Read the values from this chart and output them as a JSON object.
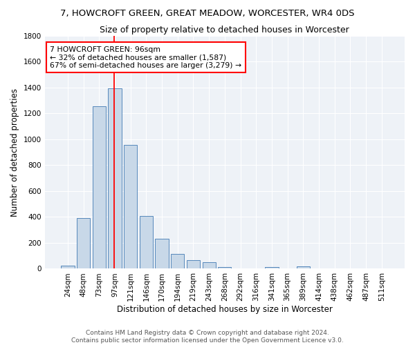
{
  "title": "7, HOWCROFT GREEN, GREAT MEADOW, WORCESTER, WR4 0DS",
  "subtitle": "Size of property relative to detached houses in Worcester",
  "xlabel": "Distribution of detached houses by size in Worcester",
  "ylabel": "Number of detached properties",
  "bar_labels": [
    "24sqm",
    "48sqm",
    "73sqm",
    "97sqm",
    "121sqm",
    "146sqm",
    "170sqm",
    "194sqm",
    "219sqm",
    "243sqm",
    "268sqm",
    "292sqm",
    "316sqm",
    "341sqm",
    "365sqm",
    "389sqm",
    "414sqm",
    "438sqm",
    "462sqm",
    "487sqm",
    "511sqm"
  ],
  "bar_values": [
    25,
    390,
    1255,
    1395,
    955,
    410,
    230,
    115,
    65,
    50,
    15,
    5,
    5,
    12,
    5,
    20,
    0,
    0,
    0,
    0,
    0
  ],
  "bar_color": "#c8d8e8",
  "bar_edge_color": "#5588bb",
  "property_line_label": "7 HOWCROFT GREEN: 96sqm",
  "annotation_line1": "← 32% of detached houses are smaller (1,587)",
  "annotation_line2": "67% of semi-detached houses are larger (3,279) →",
  "annotation_box_color": "white",
  "annotation_box_edge_color": "red",
  "vline_color": "red",
  "vline_x": 2.97,
  "ylim": [
    0,
    1800
  ],
  "yticks": [
    0,
    200,
    400,
    600,
    800,
    1000,
    1200,
    1400,
    1600,
    1800
  ],
  "background_color": "#eef2f7",
  "grid_color": "white",
  "footer_line1": "Contains HM Land Registry data © Crown copyright and database right 2024.",
  "footer_line2": "Contains public sector information licensed under the Open Government Licence v3.0.",
  "title_fontsize": 9.5,
  "subtitle_fontsize": 9,
  "axis_label_fontsize": 8.5,
  "tick_fontsize": 7.5,
  "annotation_fontsize": 7.8,
  "footer_fontsize": 6.5
}
